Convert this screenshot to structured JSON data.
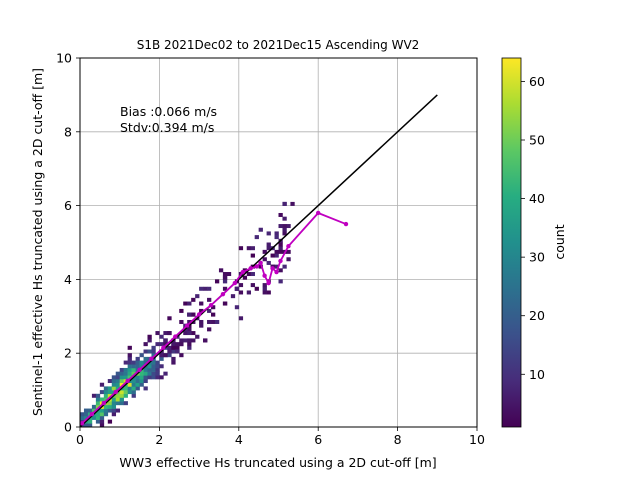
{
  "chart_data": {
    "type": "heatmap",
    "title": "S1B 2021Dec02 to 2021Dec15 Ascending WV2",
    "xlabel": "WW3 effective Hs truncated using a 2D cut-off [m]",
    "ylabel": "Sentinel-1 effective Hs truncated using a 2D cut-off [m]",
    "xlim": [
      0,
      10
    ],
    "ylim": [
      0,
      10
    ],
    "xticks": [
      0,
      2,
      4,
      6,
      8,
      10
    ],
    "yticks": [
      0,
      2,
      4,
      6,
      8,
      10
    ],
    "grid": true,
    "annotations": [
      "Bias :0.066 m/s",
      "Stdv:0.394 m/s"
    ],
    "colorbar": {
      "label": "count",
      "colormap": "viridis",
      "range": [
        1,
        64
      ],
      "ticks": [
        10,
        20,
        30,
        40,
        50,
        60
      ]
    },
    "density_ridge": {
      "description_x": [
        0.1,
        0.5,
        1.0,
        1.5,
        2.0,
        2.5,
        3.0,
        3.5
      ],
      "y": [
        0.1,
        0.5,
        1.0,
        1.5,
        2.0,
        2.5,
        3.0,
        3.5
      ],
      "peak_count": 64
    },
    "binned_mean_series": {
      "color": "#c000c0",
      "x": [
        0.05,
        0.3,
        0.6,
        0.9,
        1.2,
        1.5,
        1.8,
        2.1,
        2.4,
        2.7,
        3.0,
        3.3,
        3.6,
        3.9,
        4.1,
        4.3,
        4.45,
        4.55,
        4.65,
        4.75,
        4.85,
        4.95,
        5.05,
        5.25,
        6.0,
        6.7
      ],
      "y": [
        0.1,
        0.35,
        0.65,
        0.95,
        1.25,
        1.55,
        1.85,
        2.15,
        2.45,
        2.75,
        3.05,
        3.3,
        3.6,
        3.9,
        4.2,
        4.3,
        4.35,
        4.45,
        4.1,
        3.9,
        4.3,
        4.2,
        4.5,
        4.9,
        5.8,
        5.5
      ]
    },
    "reference_line": {
      "x": [
        0,
        9
      ],
      "y": [
        0,
        9
      ],
      "color": "#000000"
    }
  }
}
